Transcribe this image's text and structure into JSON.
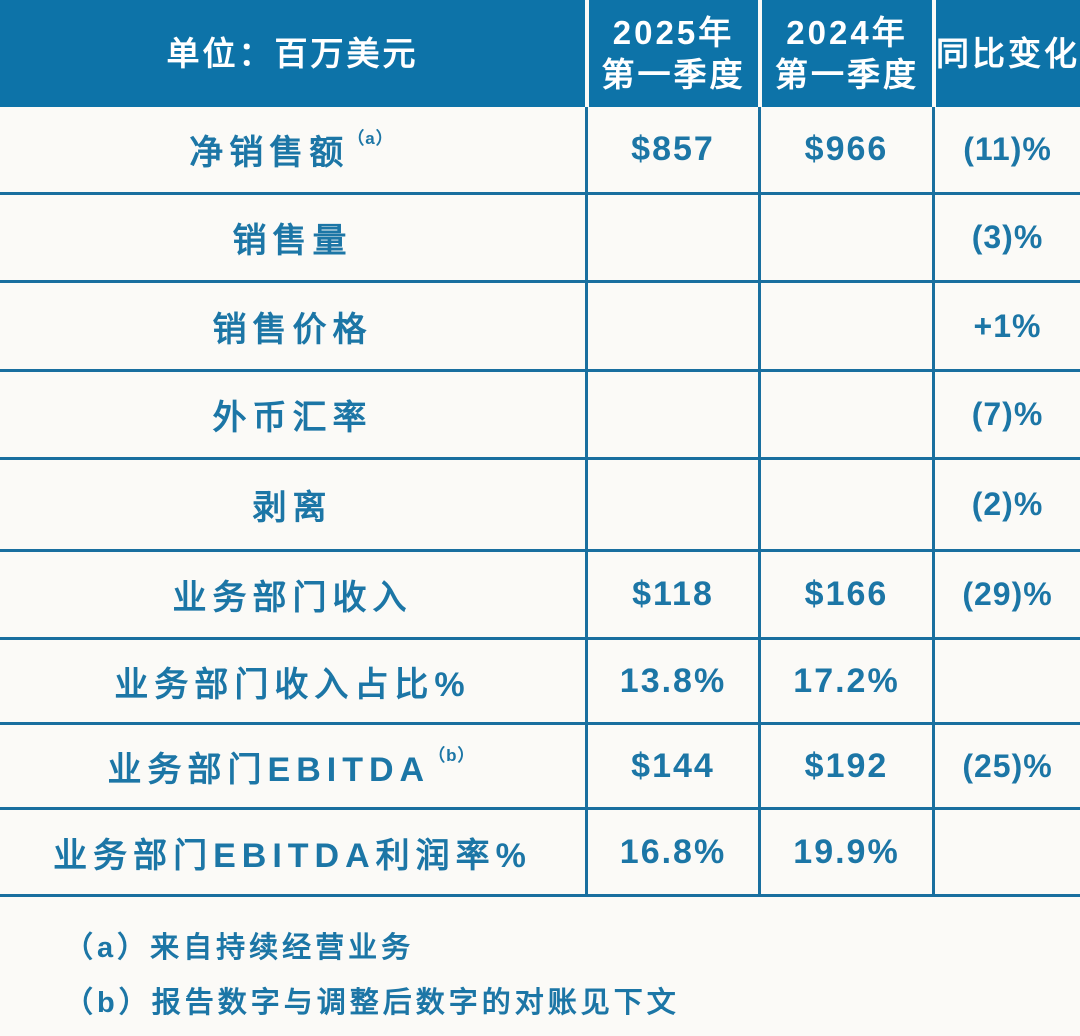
{
  "colors": {
    "header_background": "#0d73a8",
    "header_text": "#ffffff",
    "body_text": "#1c76a6",
    "grid_line": "#196f9f",
    "page_background": "#fbfaf7"
  },
  "table": {
    "header": {
      "unit_label": "单位：百万美元",
      "col_2025_line1": "2025年",
      "col_2025_line2": "第一季度",
      "col_2024_line1": "2024年",
      "col_2024_line2": "第一季度",
      "col_yoy": "同比变化"
    },
    "rows": [
      {
        "label": "净销售额",
        "sup": "（a）",
        "q1_2025": "$857",
        "q1_2024": "$966",
        "yoy": "(11)%"
      },
      {
        "label": "销售量",
        "q1_2025": "",
        "q1_2024": "",
        "yoy": "(3)%"
      },
      {
        "label": "销售价格",
        "q1_2025": "",
        "q1_2024": "",
        "yoy": "+1%"
      },
      {
        "label": "外币汇率",
        "q1_2025": "",
        "q1_2024": "",
        "yoy": "(7)%"
      },
      {
        "label": "剥离",
        "q1_2025": "",
        "q1_2024": "",
        "yoy": "(2)%"
      },
      {
        "label": "业务部门收入",
        "q1_2025": "$118",
        "q1_2024": "$166",
        "yoy": "(29)%"
      },
      {
        "label": "业务部门收入占比%",
        "q1_2025": "13.8%",
        "q1_2024": "17.2%",
        "yoy": ""
      },
      {
        "label": "业务部门EBITDA",
        "sup": "（b）",
        "q1_2025": "$144",
        "q1_2024": "$192",
        "yoy": "(25)%"
      },
      {
        "label": "业务部门EBITDA利润率%",
        "q1_2025": "16.8%",
        "q1_2024": "19.9%",
        "yoy": ""
      }
    ],
    "footnotes": {
      "a": "（a）来自持续经营业务",
      "b": "（b）报告数字与调整后数字的对账见下文"
    }
  },
  "chart_data": {
    "type": "table",
    "title": "单位：百万美元",
    "columns": [
      "单位：百万美元",
      "2025年第一季度",
      "2024年第一季度",
      "同比变化"
    ],
    "rows": [
      [
        "净销售额（a）",
        "$857",
        "$966",
        "(11)%"
      ],
      [
        "销售量",
        "",
        "",
        "(3)%"
      ],
      [
        "销售价格",
        "",
        "",
        "+1%"
      ],
      [
        "外币汇率",
        "",
        "",
        "(7)%"
      ],
      [
        "剥离",
        "",
        "",
        "(2)%"
      ],
      [
        "业务部门收入",
        "$118",
        "$166",
        "(29)%"
      ],
      [
        "业务部门收入占比%",
        "13.8%",
        "17.2%",
        ""
      ],
      [
        "业务部门EBITDA（b）",
        "$144",
        "$192",
        "(25)%"
      ],
      [
        "业务部门EBITDA利润率%",
        "16.8%",
        "19.9%",
        ""
      ]
    ],
    "footnotes": [
      "（a）来自持续经营业务",
      "（b）报告数字与调整后数字的对账见下文"
    ]
  }
}
